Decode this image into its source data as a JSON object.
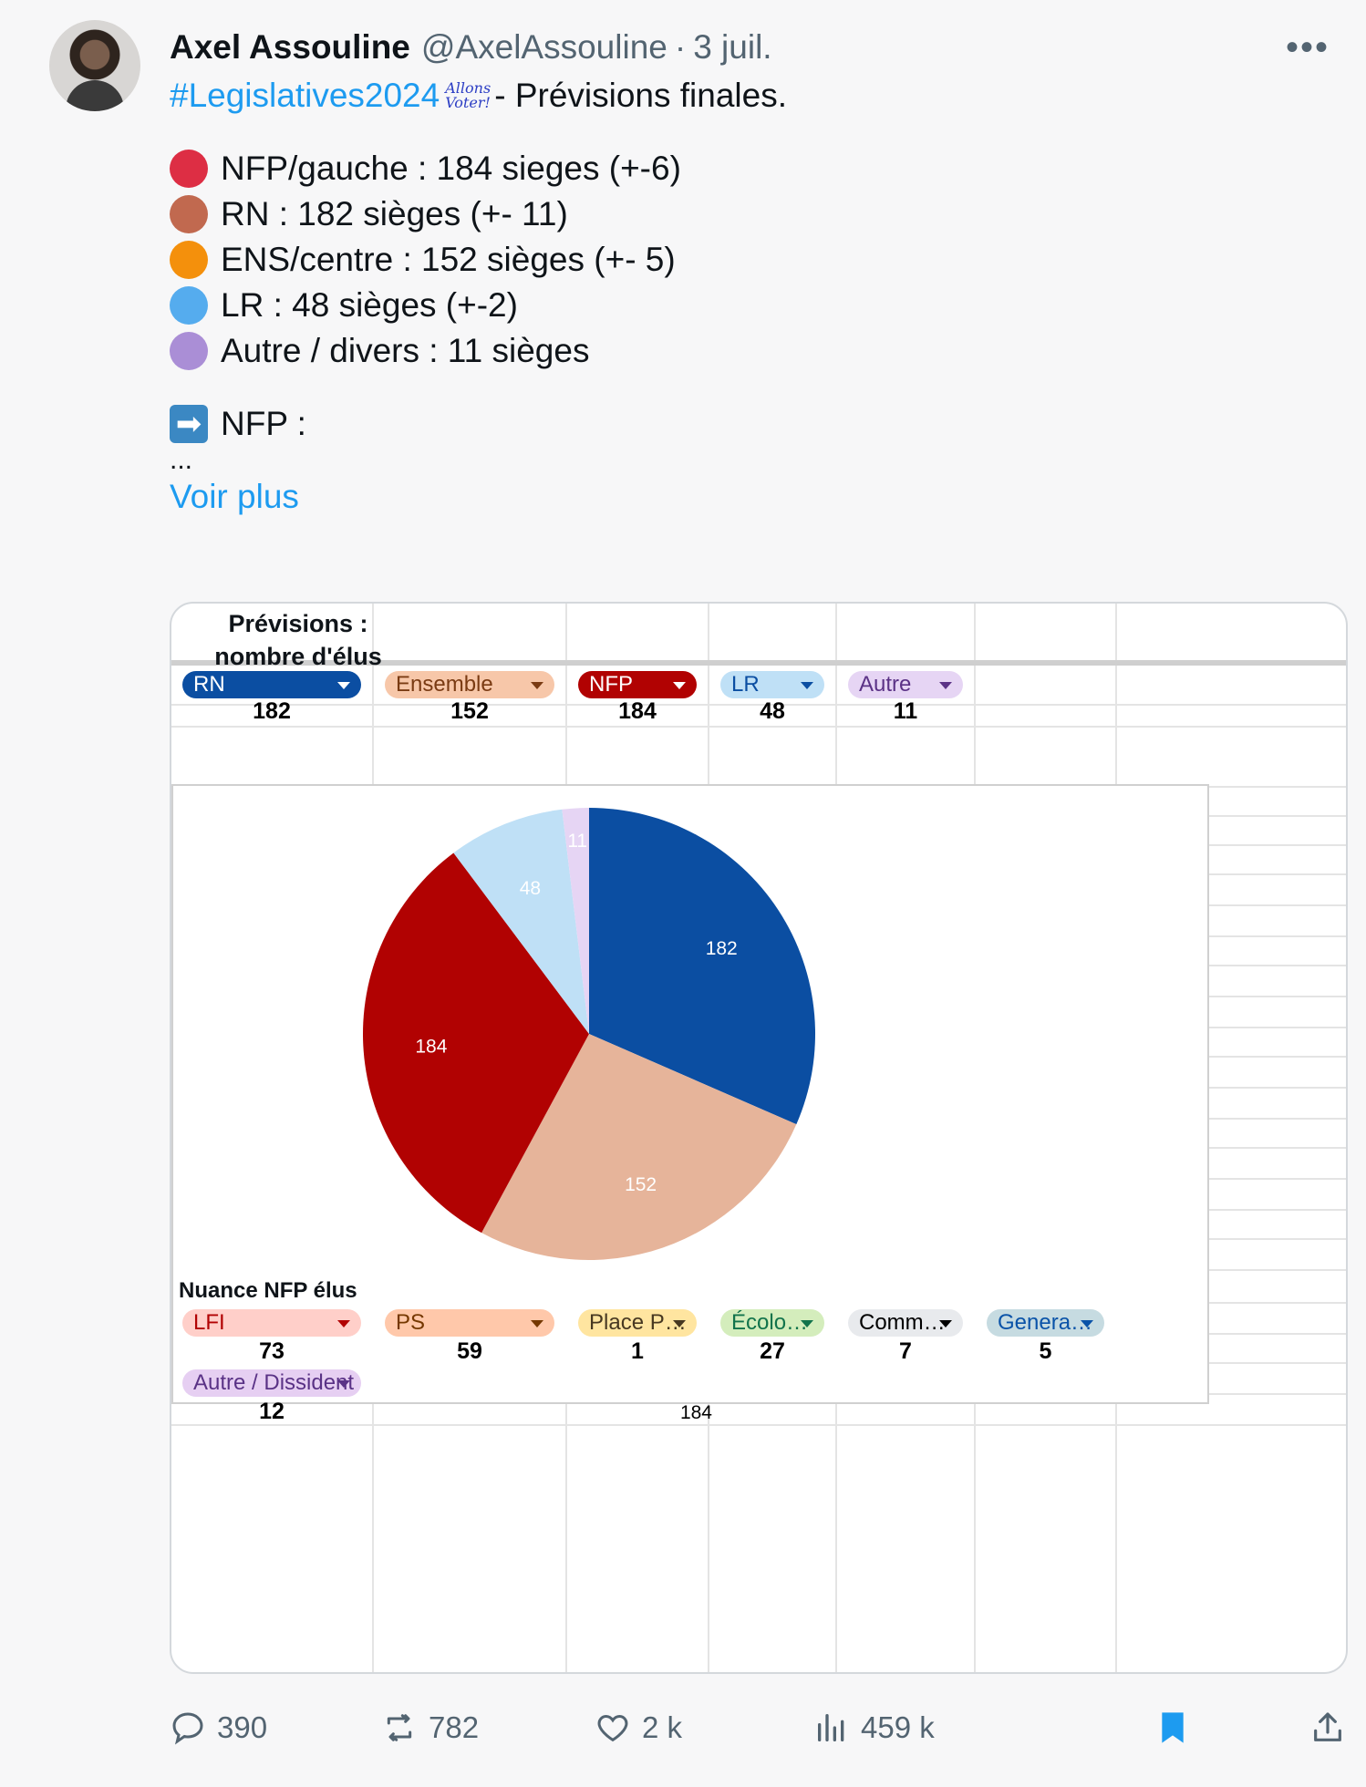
{
  "tweet": {
    "author_name": "Axel Assouline",
    "handle": "@AxelAssouline",
    "separator": "·",
    "date": "3 juil.",
    "more": "•••",
    "hashtag": "#Legislatives2024",
    "allons_voter": "Allons Voter!",
    "headline_rest": " - Prévisions finales.",
    "legend": [
      {
        "text": "NFP/gauche : 184 sieges (+-6)",
        "color": "#dd2e44"
      },
      {
        "text": "RN : 182 sièges (+- 11)",
        "color": "#c1694f"
      },
      {
        "text": "ENS/centre : 152 sièges (+- 5)",
        "color": "#f4900c"
      },
      {
        "text": "LR : 48 sièges (+-2)",
        "color": "#55acee"
      },
      {
        "text": "Autre / divers : 11 sièges",
        "color": "#aa8ed6"
      }
    ],
    "arrow_glyph": "➡",
    "nfp_line": "NFP :",
    "ellipsis": "...",
    "voir_plus": "Voir plus"
  },
  "sheet": {
    "title_line1": "Prévisions :",
    "title_line2": "nombre d'élus",
    "parties": [
      {
        "label": "RN",
        "value": "182",
        "bg": "#0b4ea2",
        "fg": "#ffffff"
      },
      {
        "label": "Ensemble",
        "value": "152",
        "bg": "#f7c7a9",
        "fg": "#7a3b13"
      },
      {
        "label": "NFP",
        "value": "184",
        "bg": "#b10202",
        "fg": "#ffffff"
      },
      {
        "label": "LR",
        "value": "48",
        "bg": "#bfe0f6",
        "fg": "#0b4ea2"
      },
      {
        "label": "Autre",
        "value": "11",
        "bg": "#e6d5f4",
        "fg": "#5b3286"
      }
    ],
    "nfp_title": "Nuance NFP élus",
    "nuances": [
      {
        "label": "LFI",
        "value": "73",
        "bg": "#ffcfc9",
        "fg": "#b10202"
      },
      {
        "label": "PS",
        "value": "59",
        "bg": "#ffc8aa",
        "fg": "#753800"
      },
      {
        "label": "Place P…",
        "value": "1",
        "bg": "#ffe5a0",
        "fg": "#473821"
      },
      {
        "label": "Écolo…",
        "value": "27",
        "bg": "#d4edbc",
        "fg": "#11734b"
      },
      {
        "label": "Comm…",
        "value": "7",
        "bg": "#e8eaed",
        "fg": "#000000"
      },
      {
        "label": "Genera…",
        "value": "5",
        "bg": "#c6dbe1",
        "fg": "#0a53a8"
      },
      {
        "label": "Autre / Dissident",
        "value": "12",
        "bg": "#e6cff2",
        "fg": "#5a3286"
      }
    ],
    "total": "184"
  },
  "chart_data": {
    "type": "pie",
    "categories": [
      "RN",
      "Ensemble",
      "NFP",
      "LR",
      "Autre"
    ],
    "values": [
      182,
      152,
      184,
      48,
      11
    ],
    "colors": [
      "#0b4ea2",
      "#e6b49a",
      "#b10202",
      "#bfe0f6",
      "#e6d5f4"
    ],
    "label_colors": [
      "#ffffff",
      "#ffffff",
      "#ffffff",
      "#ffffff",
      "#ffffff"
    ],
    "start": "12 o'clock",
    "direction": "clockwise"
  },
  "actions": {
    "replies": "390",
    "reposts": "782",
    "likes": "2 k",
    "views": "459 k",
    "bookmark_color": "#1d9bf0"
  }
}
